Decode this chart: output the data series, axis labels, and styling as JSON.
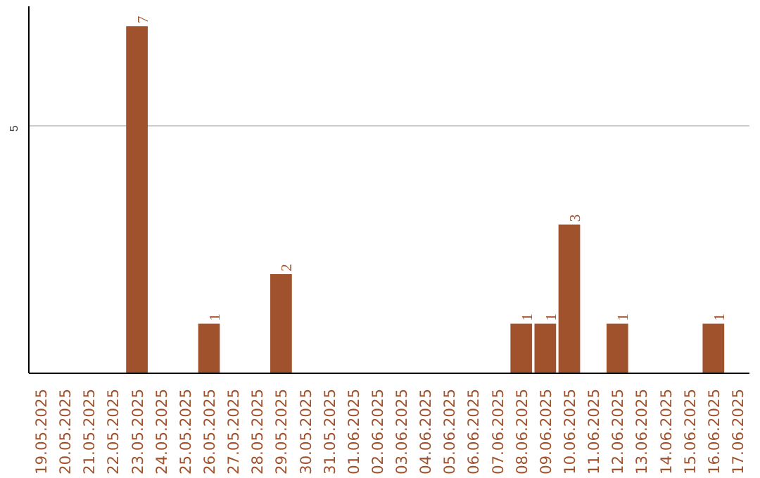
{
  "chart_data": {
    "type": "bar",
    "categories": [
      "19.05.2025",
      "20.05.2025",
      "21.05.2025",
      "22.05.2025",
      "23.05.2025",
      "24.05.2025",
      "25.05.2025",
      "26.05.2025",
      "27.05.2025",
      "28.05.2025",
      "29.05.2025",
      "30.05.2025",
      "31.05.2025",
      "01.06.2025",
      "02.06.2025",
      "03.06.2025",
      "04.06.2025",
      "05.06.2025",
      "06.06.2025",
      "07.06.2025",
      "08.06.2025",
      "09.06.2025",
      "10.06.2025",
      "11.06.2025",
      "12.06.2025",
      "13.06.2025",
      "14.06.2025",
      "15.06.2025",
      "16.06.2025",
      "17.06.2025"
    ],
    "values": [
      0,
      0,
      0,
      0,
      7,
      0,
      0,
      1,
      0,
      0,
      2,
      0,
      0,
      0,
      0,
      0,
      0,
      0,
      0,
      0,
      1,
      1,
      3,
      0,
      1,
      0,
      0,
      0,
      1,
      0
    ],
    "color": "#a0522d",
    "value_labels": [
      null,
      null,
      null,
      null,
      "7",
      null,
      null,
      "1",
      null,
      null,
      "2",
      null,
      null,
      null,
      null,
      null,
      null,
      null,
      null,
      null,
      "1",
      "1",
      "3",
      null,
      "1",
      null,
      null,
      null,
      "1",
      null
    ],
    "ylim": [
      0,
      7.4
    ],
    "yticks": [
      5
    ],
    "grid": "y"
  }
}
